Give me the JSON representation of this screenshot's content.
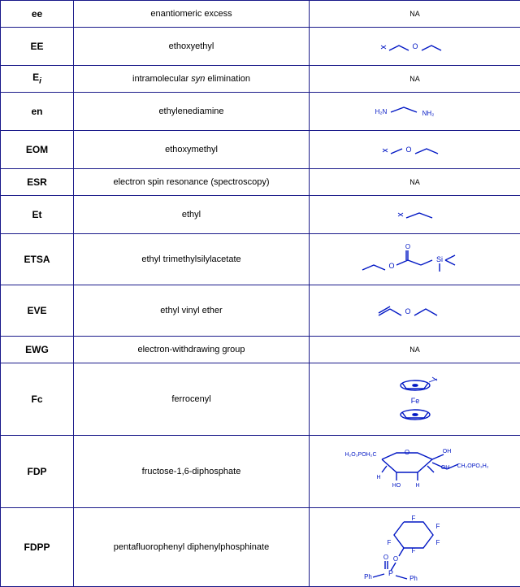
{
  "rows": [
    {
      "abbr": "ee",
      "desc": "enantiomeric excess",
      "struct": "NA",
      "h": "short",
      "icon": "na"
    },
    {
      "abbr": "EE",
      "desc": "ethoxyethyl",
      "struct": "",
      "h": "med",
      "icon": "ethoxyethyl"
    },
    {
      "abbr_html": "E<span class='sub'>i</span>",
      "desc_html": "intramolecular <span class='ital'>syn</span> elimination",
      "struct": "NA",
      "h": "short",
      "icon": "na"
    },
    {
      "abbr": "en",
      "desc": "ethylenediamine",
      "struct": "",
      "h": "med",
      "icon": "en"
    },
    {
      "abbr": "EOM",
      "desc": "ethoxymethyl",
      "struct": "",
      "h": "med",
      "icon": "eom"
    },
    {
      "abbr": "ESR",
      "desc": "electron spin resonance (spectroscopy)",
      "struct": "NA",
      "h": "short",
      "icon": "na"
    },
    {
      "abbr": "Et",
      "desc": "ethyl",
      "struct": "",
      "h": "med",
      "icon": "et"
    },
    {
      "abbr": "ETSA",
      "desc": "ethyl trimethylsilylacetate",
      "struct": "",
      "h": "tall",
      "icon": "etsa"
    },
    {
      "abbr": "EVE",
      "desc": "ethyl vinyl ether",
      "struct": "",
      "h": "tall",
      "icon": "eve"
    },
    {
      "abbr": "EWG",
      "desc": "electron-withdrawing group",
      "struct": "NA",
      "h": "short",
      "icon": "na"
    },
    {
      "abbr": "Fc",
      "desc": "ferrocenyl",
      "struct": "",
      "h": "xtall",
      "icon": "fc"
    },
    {
      "abbr": "FDP",
      "desc": "fructose-1,6-diphosphate",
      "struct": "",
      "h": "xtall",
      "icon": "fdp"
    },
    {
      "abbr": "FDPP",
      "desc": "pentafluorophenyl diphenylphosphinate",
      "struct": "",
      "h": "xxtall",
      "icon": "fdpp"
    }
  ],
  "colors": {
    "stroke": "#0016c4",
    "text": "#0016c4"
  }
}
